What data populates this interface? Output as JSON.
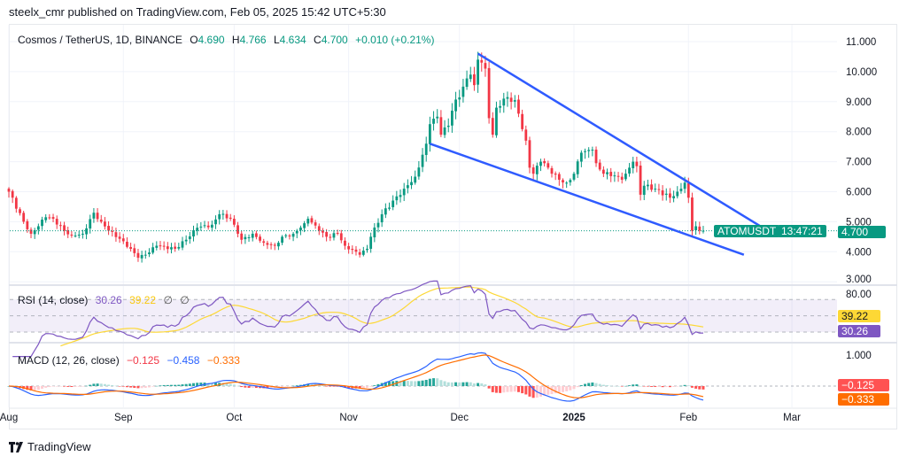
{
  "header": {
    "published": "steelx_cmr published on TradingView.com, Feb 05, 2025 15:42 UTC+5:30"
  },
  "legend": {
    "symbol": "Cosmos / TetherUS, 1D, BINANCE",
    "o_label": "O",
    "o": "4.690",
    "h_label": "H",
    "h": "4.766",
    "l_label": "L",
    "l": "4.634",
    "c_label": "C",
    "c": "4.700",
    "change": "+0.010 (+0.21%)"
  },
  "price_tag": {
    "symbol": "ATOMUSDT",
    "price": "4.700",
    "countdown": "13:47:21"
  },
  "rsi": {
    "title": "RSI (14, close)",
    "value": "30.26",
    "ma": "39.22",
    "extra1": "∅",
    "extra2": "∅",
    "axis_label": "80.00"
  },
  "macd": {
    "title": "MACD (12, 26, close)",
    "hist": "−0.125",
    "macd": "−0.458",
    "signal": "−0.333",
    "axis_label": "1.000",
    "tag_hist": "−0.125",
    "tag_signal": "−0.333"
  },
  "footer": {
    "brand": "TradingView"
  },
  "colors": {
    "up": "#089981",
    "down": "#f23645",
    "rsi": "#7e57c2",
    "rsi_ma": "#fdd835",
    "macd": "#2962ff",
    "signal": "#ff6d00",
    "trendline": "#2f5bff"
  },
  "chart_data": {
    "type": "candlestick",
    "symbol": "ATOMUSDT",
    "interval": "1D",
    "ylim": [
      3,
      11
    ],
    "y_ticks": [
      "11.000",
      "10.000",
      "9.000",
      "8.000",
      "7.000",
      "6.000",
      "5.000",
      "4.000",
      "3.000"
    ],
    "x_ticks": [
      {
        "label": "Aug",
        "date": "2024-08-01"
      },
      {
        "label": "Sep",
        "date": "2024-09-01"
      },
      {
        "label": "Oct",
        "date": "2024-10-01"
      },
      {
        "label": "Nov",
        "date": "2024-11-01"
      },
      {
        "label": "Dec",
        "date": "2024-12-01"
      },
      {
        "label": "2025",
        "date": "2025-01-01"
      },
      {
        "label": "Feb",
        "date": "2025-02-01"
      },
      {
        "label": "Mar",
        "date": "2025-03-01"
      }
    ],
    "grid": true,
    "last_price": 4.7,
    "close_points": [
      [
        "2024-08-01",
        6.0
      ],
      [
        "2024-08-05",
        5.0
      ],
      [
        "2024-08-07",
        4.6
      ],
      [
        "2024-08-11",
        5.15
      ],
      [
        "2024-08-13",
        5.1
      ],
      [
        "2024-08-16",
        4.7
      ],
      [
        "2024-08-18",
        4.55
      ],
      [
        "2024-08-21",
        4.6
      ],
      [
        "2024-08-24",
        5.3
      ],
      [
        "2024-08-26",
        5.0
      ],
      [
        "2024-08-28",
        4.7
      ],
      [
        "2024-09-01",
        4.35
      ],
      [
        "2024-09-05",
        3.8
      ],
      [
        "2024-09-07",
        3.9
      ],
      [
        "2024-09-10",
        4.2
      ],
      [
        "2024-09-15",
        4.1
      ],
      [
        "2024-09-18",
        4.4
      ],
      [
        "2024-09-21",
        4.8
      ],
      [
        "2024-09-25",
        4.9
      ],
      [
        "2024-09-27",
        5.25
      ],
      [
        "2024-09-30",
        5.1
      ],
      [
        "2024-10-02",
        4.6
      ],
      [
        "2024-10-03",
        4.4
      ],
      [
        "2024-10-06",
        4.6
      ],
      [
        "2024-10-09",
        4.3
      ],
      [
        "2024-10-12",
        4.2
      ],
      [
        "2024-10-14",
        4.5
      ],
      [
        "2024-10-17",
        4.6
      ],
      [
        "2024-10-20",
        4.95
      ],
      [
        "2024-10-21",
        5.1
      ],
      [
        "2024-10-24",
        4.7
      ],
      [
        "2024-10-26",
        4.5
      ],
      [
        "2024-10-29",
        4.6
      ],
      [
        "2024-10-31",
        4.2
      ],
      [
        "2024-11-04",
        3.9
      ],
      [
        "2024-11-06",
        4.1
      ],
      [
        "2024-11-07",
        4.5
      ],
      [
        "2024-11-10",
        5.25
      ],
      [
        "2024-11-16",
        6.1
      ],
      [
        "2024-11-19",
        6.5
      ],
      [
        "2024-11-22",
        7.6
      ],
      [
        "2024-11-23",
        8.25
      ],
      [
        "2024-11-25",
        8.5
      ],
      [
        "2024-11-26",
        7.9
      ],
      [
        "2024-11-28",
        8.2
      ],
      [
        "2024-11-29",
        8.7
      ],
      [
        "2024-12-02",
        9.5
      ],
      [
        "2024-12-04",
        9.9
      ],
      [
        "2024-12-05",
        9.55
      ],
      [
        "2024-12-06",
        10.4
      ],
      [
        "2024-12-07",
        10.3
      ],
      [
        "2024-12-08",
        10.1
      ],
      [
        "2024-12-09",
        8.45
      ],
      [
        "2024-12-10",
        7.9
      ],
      [
        "2024-12-11",
        8.8
      ],
      [
        "2024-12-13",
        9.1
      ],
      [
        "2024-12-14",
        9.15
      ],
      [
        "2024-12-16",
        9.05
      ],
      [
        "2024-12-17",
        8.6
      ],
      [
        "2024-12-19",
        7.7
      ],
      [
        "2024-12-20",
        6.8
      ],
      [
        "2024-12-21",
        6.6
      ],
      [
        "2024-12-23",
        7.0
      ],
      [
        "2024-12-24",
        6.95
      ],
      [
        "2024-12-26",
        6.6
      ],
      [
        "2024-12-28",
        6.4
      ],
      [
        "2024-12-30",
        6.3
      ],
      [
        "2025-01-01",
        6.6
      ],
      [
        "2025-01-03",
        7.3
      ],
      [
        "2025-01-04",
        7.35
      ],
      [
        "2025-01-06",
        7.4
      ],
      [
        "2025-01-07",
        6.95
      ],
      [
        "2025-01-09",
        6.6
      ],
      [
        "2025-01-10",
        6.65
      ],
      [
        "2025-01-14",
        6.4
      ],
      [
        "2025-01-15",
        6.6
      ],
      [
        "2025-01-17",
        7.0
      ],
      [
        "2025-01-18",
        6.85
      ],
      [
        "2025-01-19",
        5.9
      ],
      [
        "2025-01-20",
        6.2
      ],
      [
        "2025-01-23",
        6.1
      ],
      [
        "2025-01-27",
        5.8
      ],
      [
        "2025-01-29",
        6.0
      ],
      [
        "2025-01-31",
        6.3
      ],
      [
        "2025-02-01",
        5.8
      ],
      [
        "2025-02-02",
        4.7
      ],
      [
        "2025-02-03",
        4.85
      ],
      [
        "2025-02-04",
        4.7
      ],
      [
        "2025-02-05",
        4.7
      ]
    ],
    "trendlines": [
      {
        "name": "upper",
        "from": [
          "2024-12-06",
          10.6
        ],
        "to": [
          "2025-02-23",
          4.66
        ]
      },
      {
        "name": "lower",
        "from": [
          "2024-11-23",
          7.6
        ],
        "to": [
          "2025-02-16",
          3.9
        ]
      }
    ],
    "indicators": [
      {
        "type": "rsi",
        "period": 14,
        "levels": [
          70,
          50,
          30
        ],
        "value": 30.26,
        "ma": 39.22
      },
      {
        "type": "macd",
        "fast": 12,
        "slow": 26,
        "hist": -0.125,
        "macd": -0.458,
        "signal": -0.333
      }
    ]
  }
}
